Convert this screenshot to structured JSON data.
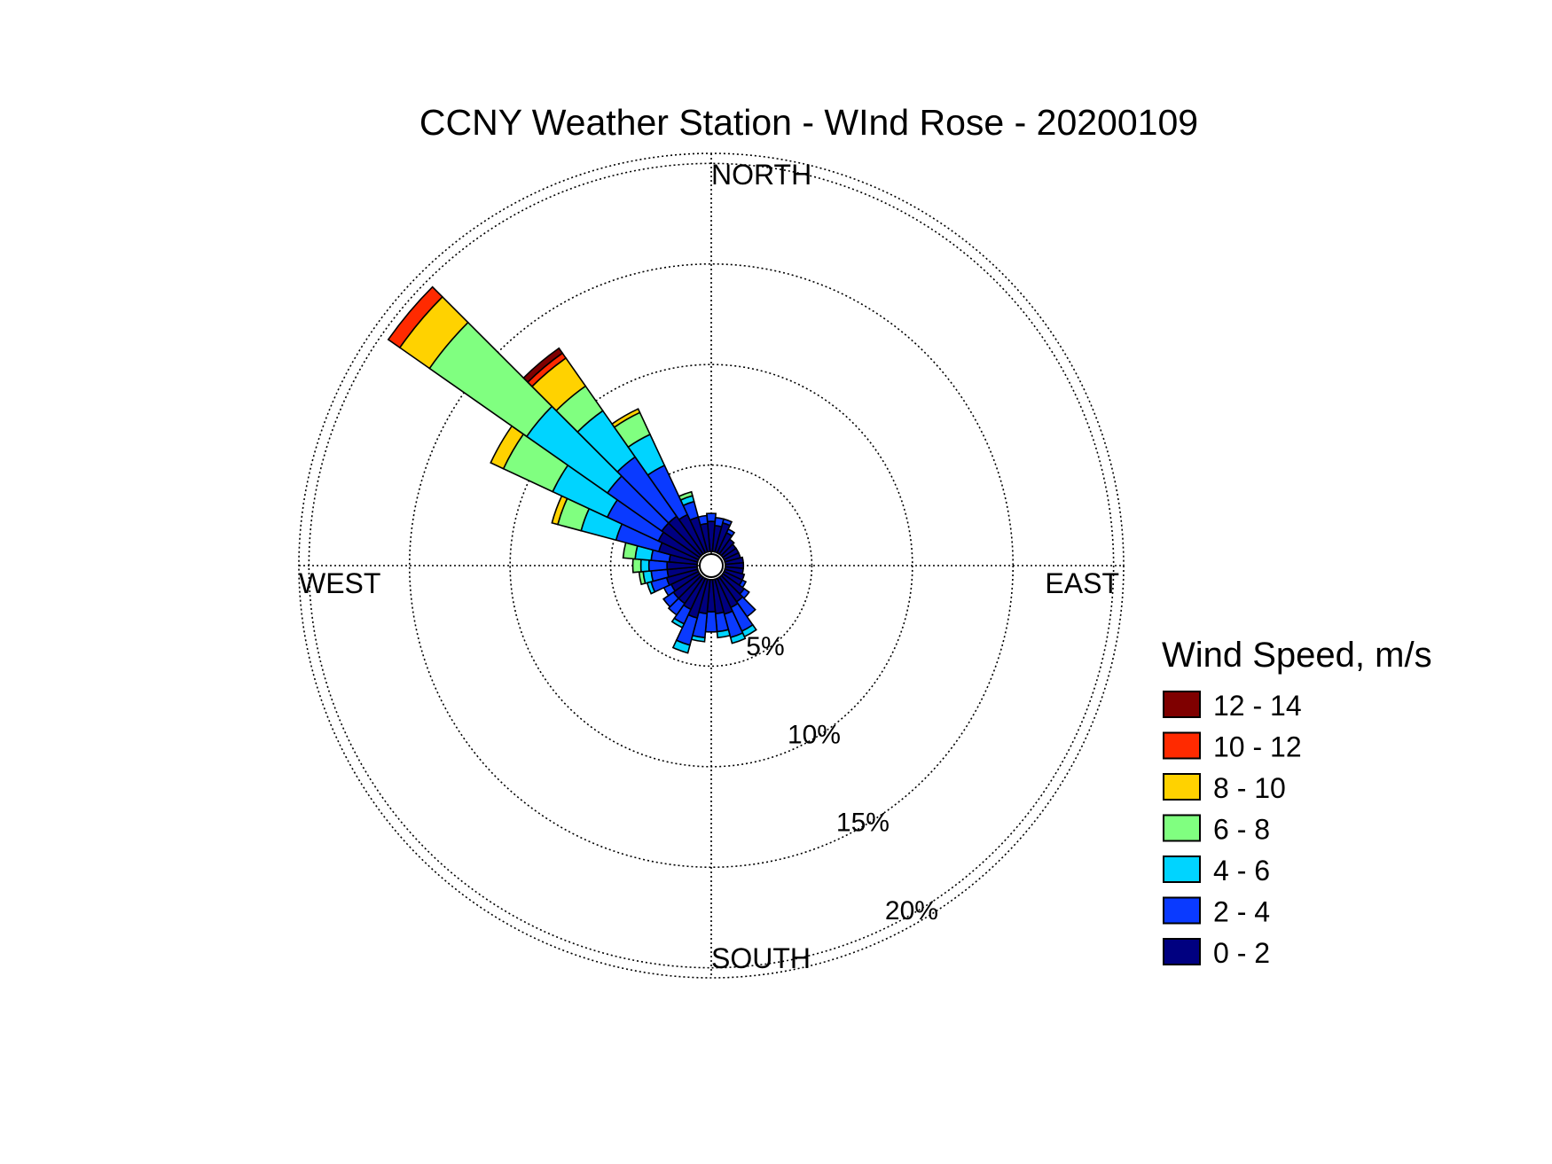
{
  "chart_data": {
    "type": "wind-rose",
    "title": "CCNY Weather Station - WInd Rose - 20200109",
    "directions": {
      "north": "NORTH",
      "east": "EAST",
      "south": "SOUTH",
      "west": "WEST"
    },
    "rings": [
      {
        "value": 5,
        "label": "5%"
      },
      {
        "value": 10,
        "label": "10%"
      },
      {
        "value": 15,
        "label": "15%"
      },
      {
        "value": 20,
        "label": "20%"
      }
    ],
    "rmax": 20.5,
    "calm_hole": 0.7,
    "grid": true,
    "legend": {
      "title": "Wind Speed, m/s",
      "placement": "right",
      "items": [
        {
          "label": "12 - 14",
          "color": "#7f0000"
        },
        {
          "label": "10 - 12",
          "color": "#ff2a00"
        },
        {
          "label": "8 - 10",
          "color": "#ffd200"
        },
        {
          "label": "6 - 8",
          "color": "#80ff80"
        },
        {
          "label": "4 - 6",
          "color": "#00d4ff"
        },
        {
          "label": "2 - 4",
          "color": "#0a3aff"
        },
        {
          "label": "0 - 2",
          "color": "#000080"
        }
      ]
    },
    "bins": [
      "0 - 2",
      "2 - 4",
      "4 - 6",
      "6 - 8",
      "8 - 10",
      "10 - 12",
      "12 - 14"
    ],
    "sector_width_deg": 10,
    "sectors": [
      {
        "dir": 0,
        "values": [
          1.5,
          0.4,
          0,
          0,
          0,
          0,
          0
        ]
      },
      {
        "dir": 10,
        "values": [
          1.3,
          0.4,
          0,
          0,
          0,
          0,
          0
        ]
      },
      {
        "dir": 20,
        "values": [
          1.5,
          0.2,
          0,
          0,
          0,
          0,
          0
        ]
      },
      {
        "dir": 30,
        "values": [
          1.1,
          0.2,
          0,
          0,
          0,
          0,
          0
        ]
      },
      {
        "dir": 40,
        "values": [
          0.9,
          0,
          0,
          0,
          0,
          0,
          0
        ]
      },
      {
        "dir": 50,
        "values": [
          0.8,
          0,
          0,
          0,
          0,
          0,
          0
        ]
      },
      {
        "dir": 60,
        "values": [
          0.8,
          0,
          0,
          0,
          0,
          0,
          0
        ]
      },
      {
        "dir": 70,
        "values": [
          0.8,
          0,
          0,
          0,
          0,
          0,
          0
        ]
      },
      {
        "dir": 80,
        "values": [
          0.9,
          0,
          0,
          0,
          0,
          0,
          0
        ]
      },
      {
        "dir": 90,
        "values": [
          0.9,
          0,
          0,
          0,
          0,
          0,
          0
        ]
      },
      {
        "dir": 100,
        "values": [
          0.9,
          0,
          0,
          0,
          0,
          0,
          0
        ]
      },
      {
        "dir": 110,
        "values": [
          1.0,
          0,
          0,
          0,
          0,
          0,
          0
        ]
      },
      {
        "dir": 120,
        "values": [
          1.0,
          0.2,
          0,
          0,
          0,
          0,
          0
        ]
      },
      {
        "dir": 130,
        "values": [
          1.3,
          0.3,
          0,
          0,
          0,
          0,
          0
        ]
      },
      {
        "dir": 140,
        "values": [
          1.5,
          0.9,
          0,
          0,
          0,
          0,
          0
        ]
      },
      {
        "dir": 150,
        "values": [
          1.6,
          1.3,
          0.3,
          0,
          0,
          0,
          0
        ]
      },
      {
        "dir": 160,
        "values": [
          1.8,
          1.2,
          0.3,
          0,
          0,
          0,
          0
        ]
      },
      {
        "dir": 170,
        "values": [
          1.7,
          0.9,
          0.3,
          0,
          0,
          0,
          0
        ]
      },
      {
        "dir": 180,
        "values": [
          1.6,
          1.0,
          0,
          0,
          0,
          0,
          0
        ]
      },
      {
        "dir": 190,
        "values": [
          1.7,
          1.2,
          0.2,
          0,
          0,
          0,
          0
        ]
      },
      {
        "dir": 200,
        "values": [
          2.0,
          1.4,
          0.4,
          0,
          0,
          0,
          0
        ]
      },
      {
        "dir": 210,
        "values": [
          1.7,
          0.8,
          0.2,
          0,
          0,
          0,
          0
        ]
      },
      {
        "dir": 220,
        "values": [
          1.6,
          0.7,
          0,
          0,
          0,
          0,
          0
        ]
      },
      {
        "dir": 230,
        "values": [
          1.6,
          0.6,
          0,
          0,
          0,
          0,
          0
        ]
      },
      {
        "dir": 240,
        "values": [
          1.5,
          0.4,
          0,
          0,
          0,
          0,
          0
        ]
      },
      {
        "dir": 250,
        "values": [
          1.6,
          0.8,
          0.2,
          0,
          0,
          0,
          0
        ]
      },
      {
        "dir": 260,
        "values": [
          1.5,
          0.8,
          0.4,
          0.2,
          0,
          0,
          0
        ]
      },
      {
        "dir": 270,
        "values": [
          1.5,
          0.9,
          0.4,
          0.4,
          0,
          0,
          0
        ]
      },
      {
        "dir": 280,
        "values": [
          1.4,
          0.9,
          0.8,
          0.6,
          0,
          0,
          0
        ]
      },
      {
        "dir": 290,
        "values": [
          2.0,
          2.2,
          1.8,
          1.2,
          0.3,
          0,
          0
        ]
      },
      {
        "dir": 300,
        "values": [
          2.2,
          2.8,
          3.0,
          2.7,
          0.7,
          0,
          0
        ]
      },
      {
        "dir": 310,
        "values": [
          2.3,
          3.3,
          4.9,
          5.9,
          1.8,
          0.7,
          0
        ]
      },
      {
        "dir": 320,
        "values": [
          2.3,
          3.6,
          2.8,
          1.5,
          1.7,
          0.3,
          0.3
        ]
      },
      {
        "dir": 330,
        "values": [
          2.1,
          2.7,
          1.7,
          1.2,
          0.2,
          0,
          0
        ]
      },
      {
        "dir": 340,
        "values": [
          1.8,
          0.8,
          0.3,
          0.2,
          0,
          0,
          0
        ]
      },
      {
        "dir": 350,
        "values": [
          1.4,
          0.4,
          0,
          0,
          0,
          0,
          0
        ]
      }
    ]
  }
}
